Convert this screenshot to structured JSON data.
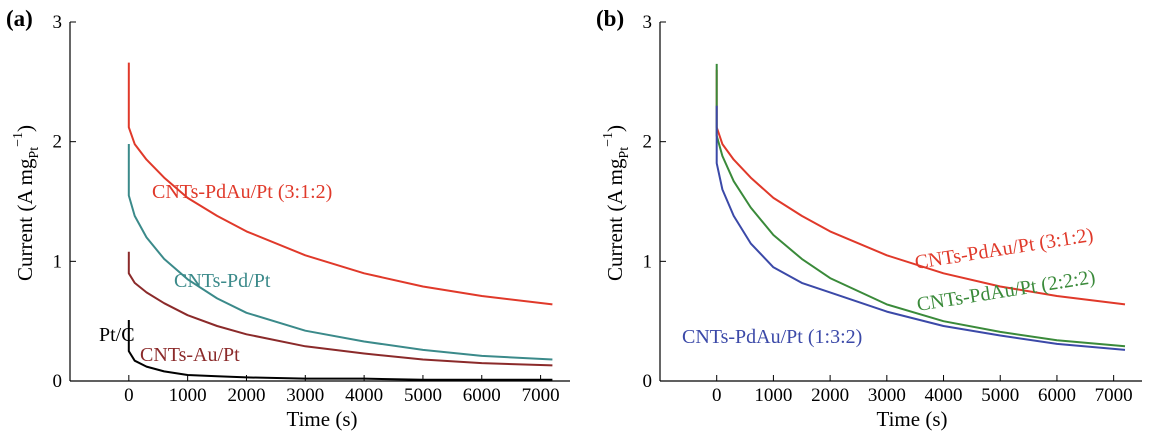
{
  "chart_data": [
    {
      "type": "line",
      "panel_label": "(a)",
      "xlabel": "Time (s)",
      "ylabel_main": "Current (A mg",
      "ylabel_sub": "Pt",
      "ylabel_sup": "−1",
      "ylabel_close": ")",
      "xlim": [
        -1000,
        7500
      ],
      "ylim": [
        0,
        3
      ],
      "xticks": [
        0,
        1000,
        2000,
        3000,
        4000,
        5000,
        6000,
        7000
      ],
      "yticks": [
        0,
        1,
        2,
        3
      ],
      "grid": false,
      "legend": "inline labels",
      "x": [
        0,
        100,
        300,
        600,
        1000,
        1500,
        2000,
        3000,
        4000,
        5000,
        6000,
        7200
      ],
      "series": [
        {
          "name": "CNTs-PdAu/Pt (3:1:2)",
          "color": "#e0392a",
          "start": 2.66,
          "values": [
            2.12,
            1.98,
            1.85,
            1.7,
            1.53,
            1.38,
            1.25,
            1.05,
            0.9,
            0.79,
            0.71,
            0.64
          ]
        },
        {
          "name": "CNTs-Pd/Pt",
          "color": "#3b8a8a",
          "start": 1.98,
          "values": [
            1.55,
            1.38,
            1.2,
            1.02,
            0.85,
            0.69,
            0.57,
            0.42,
            0.33,
            0.26,
            0.21,
            0.18
          ]
        },
        {
          "name": "CNTs-Au/Pt",
          "color": "#8b2a2a",
          "start": 1.08,
          "values": [
            0.9,
            0.82,
            0.74,
            0.65,
            0.55,
            0.46,
            0.39,
            0.29,
            0.23,
            0.18,
            0.15,
            0.13
          ]
        },
        {
          "name": "Pt/C",
          "color": "#000000",
          "start": 0.51,
          "values": [
            0.25,
            0.17,
            0.12,
            0.08,
            0.05,
            0.04,
            0.03,
            0.02,
            0.02,
            0.01,
            0.01,
            0.01
          ]
        }
      ]
    },
    {
      "type": "line",
      "panel_label": "(b)",
      "xlabel": "Time (s)",
      "ylabel_main": "Current (A mg",
      "ylabel_sub": "Pt",
      "ylabel_sup": "−1",
      "ylabel_close": ")",
      "xlim": [
        -1000,
        7500
      ],
      "ylim": [
        0,
        3
      ],
      "xticks": [
        0,
        1000,
        2000,
        3000,
        4000,
        5000,
        6000,
        7000
      ],
      "yticks": [
        0,
        1,
        2,
        3
      ],
      "grid": false,
      "legend": "inline labels",
      "x": [
        0,
        100,
        300,
        600,
        1000,
        1500,
        2000,
        3000,
        4000,
        5000,
        6000,
        7200
      ],
      "series": [
        {
          "name": "CNTs-PdAu/Pt (3:1:2)",
          "color": "#e0392a",
          "start": 2.6,
          "values": [
            2.12,
            1.98,
            1.85,
            1.7,
            1.53,
            1.38,
            1.25,
            1.05,
            0.9,
            0.79,
            0.71,
            0.64
          ]
        },
        {
          "name": "CNTs-PdAu/Pt (2:2:2)",
          "color": "#3a8a3a",
          "start": 2.65,
          "values": [
            2.05,
            1.88,
            1.67,
            1.45,
            1.22,
            1.02,
            0.86,
            0.64,
            0.5,
            0.41,
            0.34,
            0.29
          ]
        },
        {
          "name": "CNTs-PdAu/Pt (1:3:2)",
          "color": "#3b49a8",
          "start": 2.3,
          "values": [
            1.82,
            1.6,
            1.38,
            1.15,
            0.95,
            0.82,
            0.74,
            0.58,
            0.46,
            0.38,
            0.31,
            0.26
          ]
        }
      ]
    }
  ]
}
